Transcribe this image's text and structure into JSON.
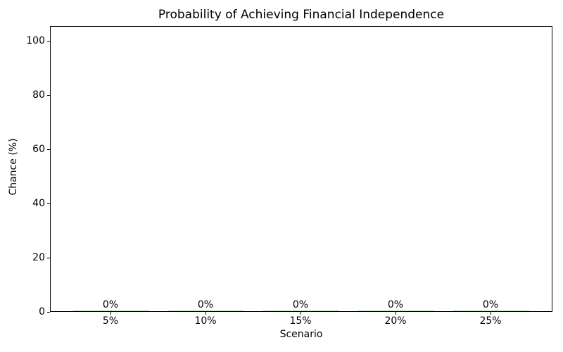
{
  "chart_data": {
    "type": "bar",
    "title": "Probability of Achieving Financial Independence",
    "xlabel": "Scenario",
    "ylabel": "Chance (%)",
    "categories": [
      "5%",
      "10%",
      "15%",
      "20%",
      "25%"
    ],
    "values": [
      0,
      0,
      0,
      0,
      0
    ],
    "bar_labels": [
      "0%",
      "0%",
      "0%",
      "0%",
      "0%"
    ],
    "yticks": [
      0,
      20,
      40,
      60,
      80,
      100
    ],
    "ytick_labels": [
      "0",
      "20",
      "40",
      "60",
      "80",
      "100"
    ],
    "ylim": [
      0,
      105.5
    ],
    "grid": false,
    "legend": "none",
    "bar_color": "#a8dca8",
    "axis_color": "#000000",
    "text_color": "#000000"
  }
}
